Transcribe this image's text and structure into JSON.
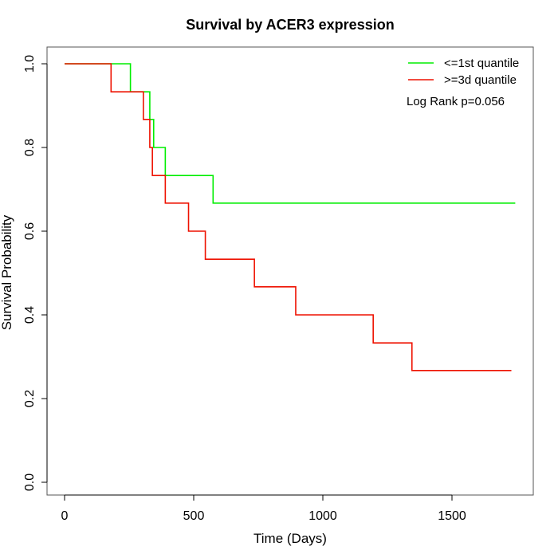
{
  "chart_data": {
    "type": "line",
    "title": "Survival by ACER3 expression",
    "xlabel": "Time (Days)",
    "ylabel": "Survival Probability",
    "xlim": [
      0,
      1750
    ],
    "ylim": [
      0,
      1
    ],
    "xticks": [
      0,
      500,
      1000,
      1500
    ],
    "xtick_labels": [
      "0",
      "500",
      "1000",
      "1500"
    ],
    "yticks": [
      0,
      0.2,
      0.4,
      0.6,
      0.8,
      1.0
    ],
    "ytick_labels": [
      "0.0",
      "0.2",
      "0.4",
      "0.6",
      "0.8",
      "1.0"
    ],
    "grid": false,
    "legend_position": "top-right",
    "annotation": "Log Rank p=0.056",
    "series": [
      {
        "name": "<=1st quantile",
        "color": "#00ee00",
        "step": true,
        "x": [
          0,
          255,
          330,
          345,
          390,
          575,
          1745
        ],
        "y": [
          1.0,
          0.933,
          0.867,
          0.8,
          0.733,
          0.667,
          0.667
        ]
      },
      {
        "name": ">=3d quantile",
        "color": "#ee1100",
        "step": true,
        "x": [
          0,
          180,
          305,
          330,
          340,
          390,
          480,
          545,
          735,
          895,
          1195,
          1345,
          1730
        ],
        "y": [
          1.0,
          0.933,
          0.867,
          0.8,
          0.733,
          0.667,
          0.6,
          0.533,
          0.467,
          0.4,
          0.333,
          0.267,
          0.267
        ]
      }
    ]
  }
}
